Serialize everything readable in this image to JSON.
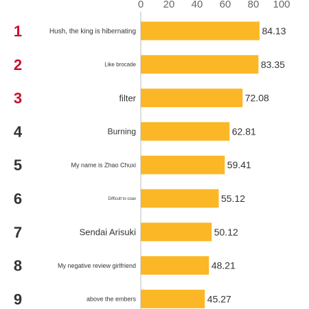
{
  "chart_data": {
    "type": "bar",
    "orientation": "horizontal",
    "xlim": [
      0,
      100
    ],
    "x_ticks": [
      "0",
      "20",
      "40",
      "60",
      "80",
      "100"
    ],
    "colors": {
      "bar": "#FBB726",
      "axis": "#bbbbbb",
      "rank_top": "#C8102E",
      "rank_other": "#333333"
    },
    "categories": [
      {
        "rank": "1",
        "name": "Hush, the king is hibernating",
        "value": 84.13,
        "value_label": "84.13"
      },
      {
        "rank": "2",
        "name": "Like brocade",
        "value": 83.35,
        "value_label": "83.35"
      },
      {
        "rank": "3",
        "name": "filter",
        "value": 72.08,
        "value_label": "72.08"
      },
      {
        "rank": "4",
        "name": "Burning",
        "value": 62.81,
        "value_label": "62.81"
      },
      {
        "rank": "5",
        "name": "My name is Zhao Chuxi",
        "value": 59.41,
        "value_label": "59.41"
      },
      {
        "rank": "6",
        "name": "Difficult to coax",
        "value": 55.12,
        "value_label": "55.12"
      },
      {
        "rank": "7",
        "name": "Sendai Arisuki",
        "value": 50.12,
        "value_label": "50.12"
      },
      {
        "rank": "8",
        "name": "My negative review girlfriend",
        "value": 48.21,
        "value_label": "48.21"
      },
      {
        "rank": "9",
        "name": "above the embers",
        "value": 45.27,
        "value_label": "45.27"
      }
    ]
  }
}
